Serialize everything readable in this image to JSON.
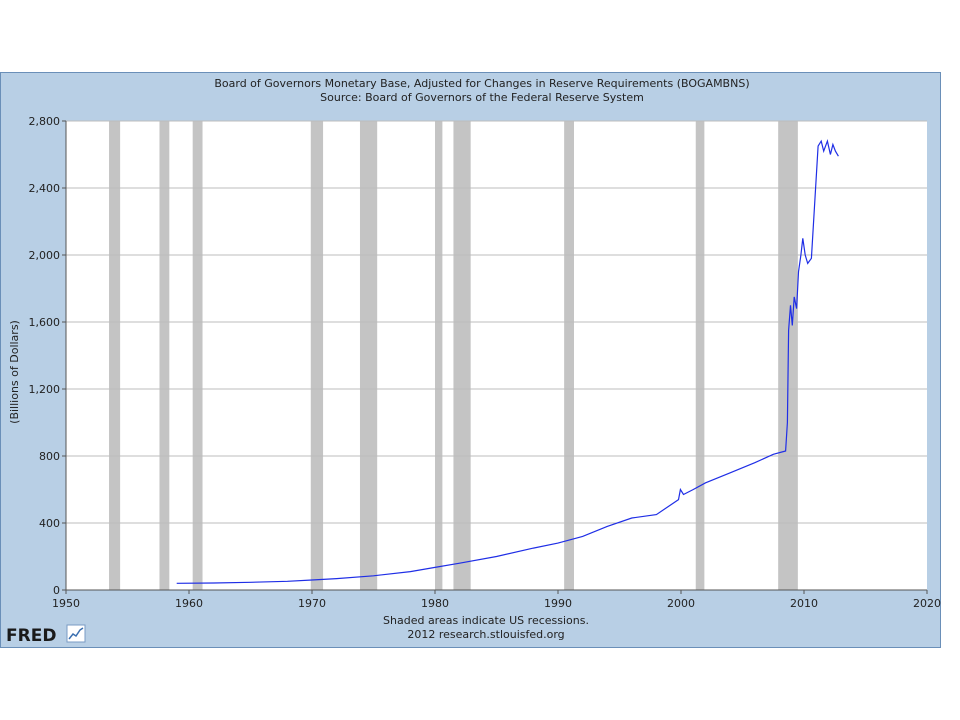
{
  "chart_data": {
    "type": "line",
    "title": "Board of Governors Monetary Base, Adjusted for Changes in Reserve Requirements (BOGAMBNS)",
    "subtitle": "Source: Board of Governors of the Federal Reserve System",
    "xlabel": "",
    "ylabel": "(Billions of Dollars)",
    "xlim": [
      1950,
      2020
    ],
    "ylim": [
      0,
      2800
    ],
    "x_ticks": [
      1950,
      1960,
      1970,
      1980,
      1990,
      2000,
      2010,
      2020
    ],
    "x_tick_labels": [
      "1950",
      "1960",
      "1970",
      "1980",
      "1990",
      "2000",
      "2010",
      "2020"
    ],
    "y_ticks": [
      0,
      400,
      800,
      1200,
      1600,
      2000,
      2400,
      2800
    ],
    "y_tick_labels": [
      "0",
      "400",
      "800",
      "1,200",
      "1,600",
      "2,000",
      "2,400",
      "2,800"
    ],
    "grid": true,
    "series_color": "#1f2ee6",
    "recession_color": "#c4c4c4",
    "recessions": [
      [
        1953.5,
        1954.4
      ],
      [
        1957.6,
        1958.4
      ],
      [
        1960.3,
        1961.1
      ],
      [
        1969.9,
        1970.9
      ],
      [
        1973.9,
        1975.3
      ],
      [
        1980.0,
        1980.6
      ],
      [
        1981.5,
        1982.9
      ],
      [
        1990.5,
        1991.3
      ],
      [
        2001.2,
        2001.9
      ],
      [
        2007.9,
        2009.5
      ]
    ],
    "series": [
      {
        "x": [
          1959.0,
          1962,
          1965,
          1968,
          1970,
          1972,
          1975,
          1978,
          1980,
          1982,
          1985,
          1988,
          1990,
          1992,
          1994,
          1996,
          1998,
          1999.8,
          1999.95,
          2000.2,
          2001,
          2002,
          2004,
          2006,
          2007.5,
          2008.5,
          2008.65,
          2008.75,
          2008.9,
          2009.05,
          2009.2,
          2009.4,
          2009.55,
          2009.75,
          2009.9,
          2010.1,
          2010.3,
          2010.6,
          2010.9,
          2011.15,
          2011.4,
          2011.6,
          2011.9,
          2012.15,
          2012.35,
          2012.55,
          2012.8
        ],
        "y": [
          40,
          42,
          46,
          52,
          60,
          68,
          85,
          110,
          135,
          160,
          200,
          250,
          280,
          320,
          380,
          430,
          450,
          540,
          600,
          570,
          600,
          640,
          700,
          760,
          810,
          830,
          1000,
          1550,
          1700,
          1580,
          1750,
          1680,
          1900,
          2000,
          2100,
          2000,
          1950,
          1980,
          2350,
          2650,
          2680,
          2620,
          2680,
          2600,
          2660,
          2620,
          2590
        ]
      }
    ]
  },
  "footer": {
    "note": "Shaded areas indicate US recessions.",
    "credit": "2012 research.stlouisfed.org"
  },
  "logo": {
    "text": "FRED"
  }
}
